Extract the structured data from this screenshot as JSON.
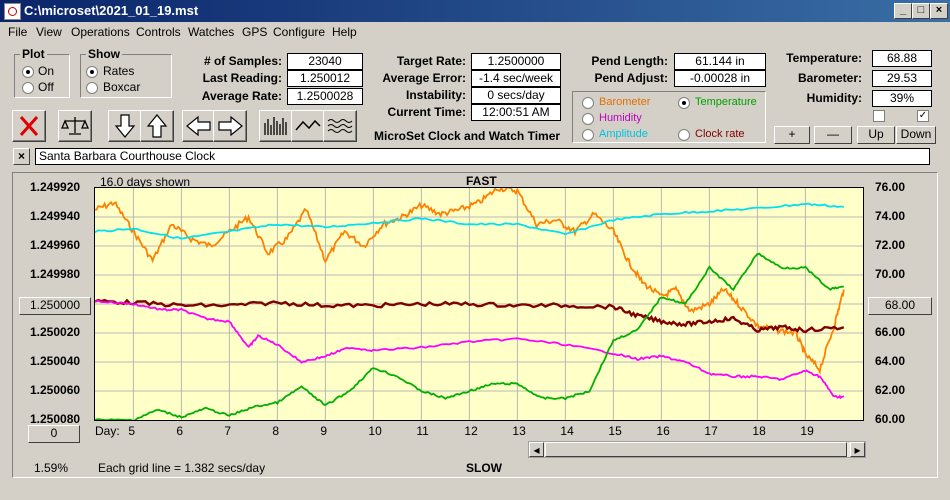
{
  "window": {
    "title": "C:\\microset\\2021_01_19.mst"
  },
  "menu": [
    "File",
    "View",
    "Operations",
    "Controls",
    "Watches",
    "GPS",
    "Configure",
    "Help"
  ],
  "plot_group": {
    "title": "Plot",
    "options": [
      "On",
      "Off"
    ],
    "selected": "On"
  },
  "show_group": {
    "title": "Show",
    "options": [
      "Rates",
      "Boxcar"
    ],
    "selected": "Rates"
  },
  "stats": {
    "samples_label": "# of Samples:",
    "samples": "23040",
    "last_reading_label": "Last Reading:",
    "last_reading": "1.250012",
    "average_rate_label": "Average Rate:",
    "average_rate": "1.2500028",
    "target_rate_label": "Target Rate:",
    "target_rate": "1.2500000",
    "average_error_label": "Average Error:",
    "average_error": "-1.4 sec/week",
    "instability_label": "Instability:",
    "instability": "0 secs/day",
    "current_time_label": "Current Time:",
    "current_time": "12:00:51 AM",
    "pend_length_label": "Pend Length:",
    "pend_length": "61.144 in",
    "pend_adjust_label": "Pend Adjust:",
    "pend_adjust": "-0.00028 in",
    "temperature_label": "Temperature:",
    "temperature": "68.88",
    "barometer_label": "Barometer:",
    "barometer": "29.53",
    "humidity_label": "Humidity:",
    "humidity": "39%"
  },
  "app_subtitle": "MicroSet Clock and Watch Timer",
  "sensor_select": {
    "options": [
      {
        "label": "Barometer",
        "color": "#e07000"
      },
      {
        "label": "Temperature",
        "color": "#00a000"
      },
      {
        "label": "Humidity",
        "color": "#c000c0"
      },
      {
        "label": "Clock rate",
        "color": "#800000"
      },
      {
        "label": "Amplitude",
        "color": "#00c0e0"
      }
    ],
    "selected": "Temperature"
  },
  "adjust_buttons": [
    "+",
    "—",
    "Up",
    "Down"
  ],
  "clock_name": "Santa Barbara Courthouse Clock",
  "chart_header": {
    "days_shown": "16.0 days shown",
    "fast": "FAST",
    "slow": "SLOW",
    "grid_note": "Each grid line = 1.382 secs/day",
    "percent": "1.59%",
    "day_label": "Day:"
  },
  "left_box_value": "1.250000",
  "right_box_value": "68.00",
  "zero_button": "0",
  "colors": {
    "rate": "#800000",
    "temperature": "#00b000",
    "barometer": "#ff8000",
    "humidity": "#ff00ff",
    "amplitude": "#00e0f0",
    "plot_bg": "#ffffc8"
  },
  "chart_data": {
    "type": "line",
    "x_label": "Day:",
    "x_ticks": [
      5,
      6,
      7,
      8,
      9,
      10,
      11,
      12,
      13,
      14,
      15,
      16,
      17,
      18,
      19
    ],
    "xlim": [
      4.2,
      20.2
    ],
    "y_left_ticks": [
      "1.249920",
      "1.249940",
      "1.249960",
      "1.249980",
      "1.250000",
      "1.250020",
      "1.250040",
      "1.250060",
      "1.250080"
    ],
    "y_left_lim": [
      1.24992,
      1.25008
    ],
    "y_right_ticks": [
      "76.00",
      "74.00",
      "72.00",
      "70.00",
      "68.00",
      "66.00",
      "64.00",
      "62.00",
      "60.00"
    ],
    "y_right_lim": [
      60,
      76
    ],
    "series": [
      {
        "name": "Barometer",
        "color": "#ff8000",
        "axis": "right",
        "x": [
          4.2,
          4.6,
          5.0,
          5.4,
          5.8,
          6.2,
          6.6,
          7.0,
          7.4,
          7.8,
          8.2,
          8.6,
          9.0,
          9.4,
          9.8,
          10.2,
          10.6,
          11.0,
          11.4,
          11.8,
          12.2,
          12.6,
          13.0,
          13.4,
          13.8,
          14.2,
          14.6,
          15.0,
          15.3,
          15.6,
          16.0,
          16.3,
          16.6,
          17.0,
          17.3,
          17.6,
          18.0,
          18.4,
          18.8,
          19.0,
          19.3,
          19.6,
          19.8
        ],
        "y": [
          74.5,
          75.0,
          73.0,
          71.0,
          73.5,
          72.5,
          72.0,
          73.0,
          74.0,
          71.5,
          72.5,
          74.5,
          71.0,
          73.0,
          72.0,
          73.5,
          74.0,
          74.8,
          74.2,
          74.5,
          75.0,
          76.0,
          75.8,
          73.5,
          73.8,
          73.0,
          74.2,
          73.0,
          71.0,
          69.5,
          68.5,
          69.0,
          67.5,
          68.0,
          69.0,
          68.0,
          66.5,
          66.2,
          66.0,
          64.5,
          63.5,
          66.5,
          69.0
        ]
      },
      {
        "name": "Amplitude",
        "color": "#00e0f0",
        "axis": "right",
        "x": [
          4.2,
          5,
          6,
          7,
          8,
          9,
          10,
          11,
          12,
          13,
          14,
          15,
          16,
          17,
          18,
          19,
          19.8
        ],
        "y": [
          73.0,
          73.2,
          72.5,
          73.0,
          73.5,
          73.3,
          73.6,
          73.9,
          73.5,
          73.5,
          72.8,
          73.8,
          74.2,
          74.4,
          74.6,
          74.9,
          74.7
        ]
      },
      {
        "name": "Clock rate",
        "color": "#800000",
        "axis": "left",
        "x": [
          4.2,
          5,
          6,
          7,
          8,
          9,
          10,
          11,
          12,
          13,
          14,
          15,
          15.5,
          16,
          16.5,
          17,
          17.5,
          18,
          18.5,
          19,
          19.8
        ],
        "y": [
          1.249998,
          1.249999,
          1.250001,
          1.250001,
          1.249999,
          1.250001,
          1.250001,
          1.25,
          1.25,
          1.250001,
          1.250001,
          1.250002,
          1.250008,
          1.250012,
          1.250014,
          1.250012,
          1.25001,
          1.250018,
          1.250016,
          1.250018,
          1.250016
        ]
      },
      {
        "name": "Humidity",
        "color": "#ff00ff",
        "axis": "left",
        "x": [
          4.2,
          5,
          5.6,
          6,
          6.5,
          7,
          7.4,
          7.6,
          8,
          8.5,
          9,
          9.5,
          10,
          11,
          12,
          13,
          14,
          15,
          15.5,
          16,
          16.5,
          17,
          17.5,
          18,
          18.5,
          19,
          19.3,
          19.6,
          19.8
        ],
        "y": [
          1.249998,
          1.25,
          1.250004,
          1.250004,
          1.25001,
          1.250012,
          1.25003,
          1.250022,
          1.250028,
          1.25004,
          1.250036,
          1.25003,
          1.250032,
          1.25003,
          1.250026,
          1.250024,
          1.250028,
          1.250034,
          1.250038,
          1.250036,
          1.25004,
          1.250048,
          1.25005,
          1.25005,
          1.250052,
          1.250046,
          1.25005,
          1.250064,
          1.250064
        ]
      },
      {
        "name": "Temperature",
        "color": "#00b000",
        "axis": "right",
        "x": [
          4.2,
          5,
          5.5,
          6,
          6.5,
          7,
          7.5,
          8,
          8.5,
          9,
          9.5,
          10,
          10.5,
          11,
          11.5,
          12,
          12.5,
          13,
          13.5,
          14,
          14.5,
          15,
          15.5,
          16,
          16.5,
          17,
          17.5,
          18,
          18.5,
          19,
          19.5,
          19.8
        ],
        "y": [
          60.0,
          60.0,
          60.7,
          60.2,
          60.8,
          60.3,
          60.9,
          61.2,
          62.3,
          61.0,
          62.0,
          63.6,
          63.0,
          62.0,
          61.5,
          62.0,
          62.5,
          62.5,
          61.5,
          61.5,
          62.0,
          65.5,
          66.2,
          68.5,
          68.0,
          70.5,
          69.0,
          71.5,
          70.5,
          70.5,
          69.0,
          69.2
        ]
      }
    ]
  }
}
